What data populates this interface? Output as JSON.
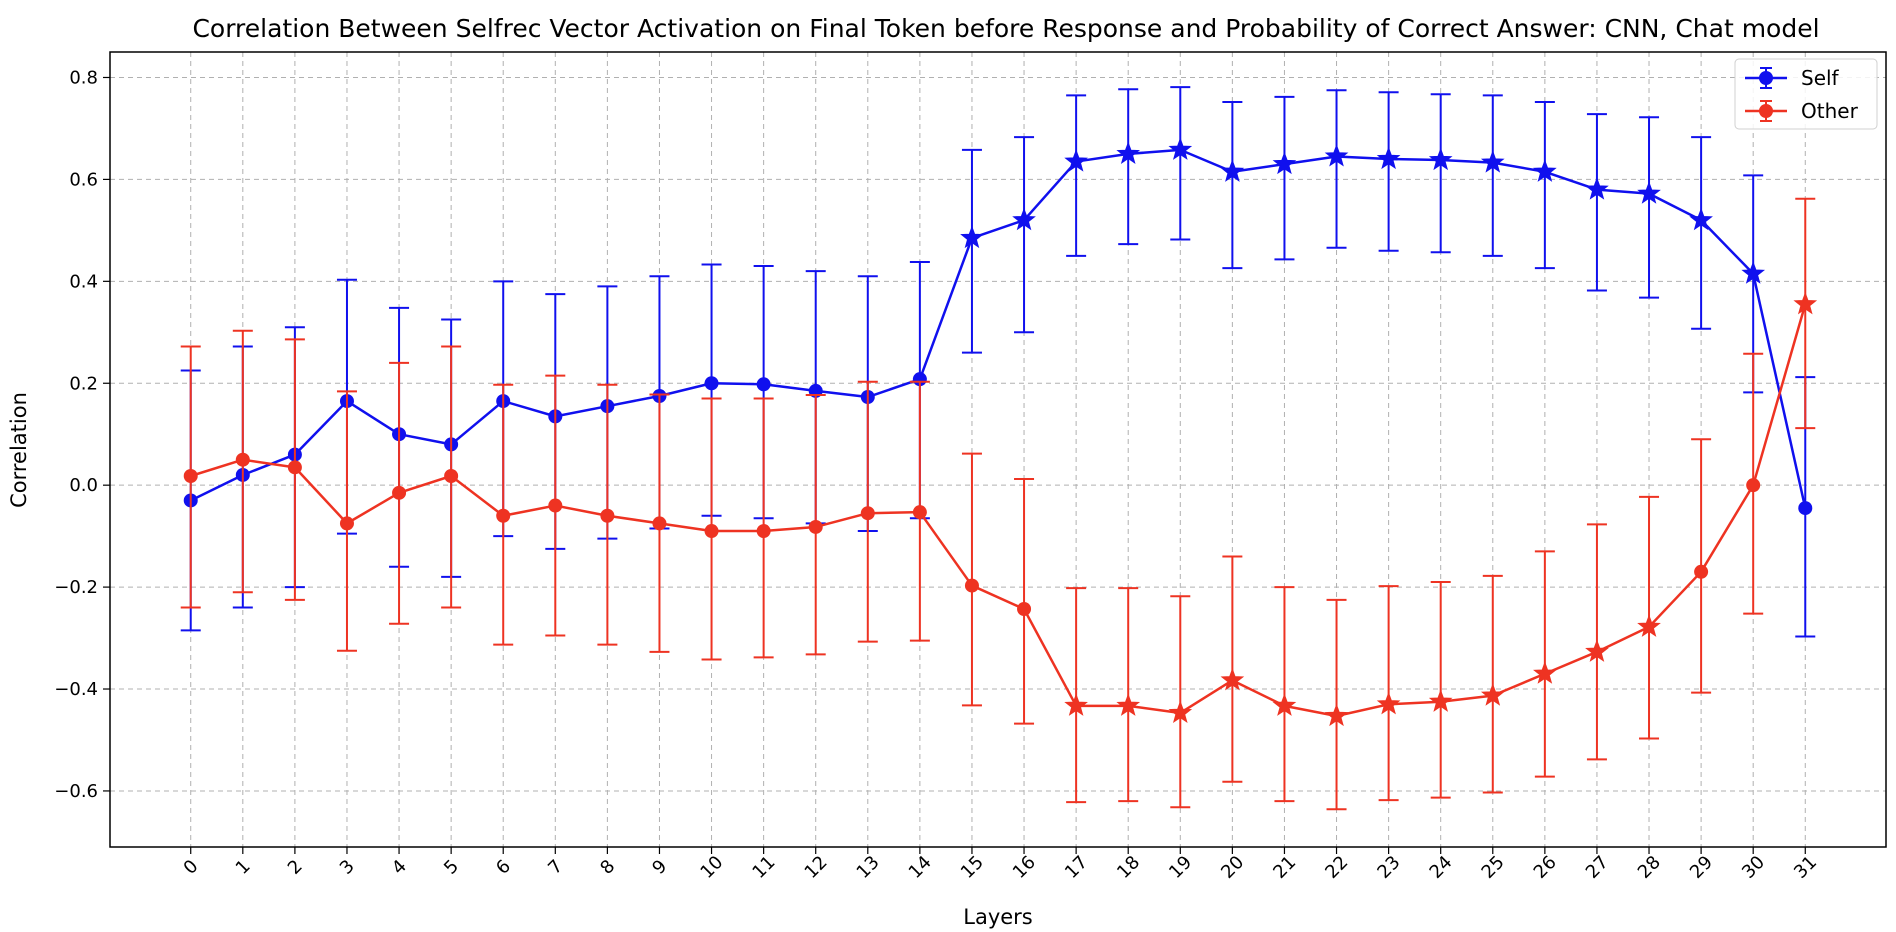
{
  "chart_data": {
    "type": "line",
    "title": "Correlation Between Selfrec Vector Activation on Final Token before Response and Probability of Correct Answer: CNN, Chat model",
    "xlabel": "Layers",
    "ylabel": "Correlation",
    "x": [
      0,
      1,
      2,
      3,
      4,
      5,
      6,
      7,
      8,
      9,
      10,
      11,
      12,
      13,
      14,
      15,
      16,
      17,
      18,
      19,
      20,
      21,
      22,
      23,
      24,
      25,
      26,
      27,
      28,
      29,
      30,
      31
    ],
    "xlim": [
      -1.55,
      32.55
    ],
    "ylim": [
      -0.71,
      0.85
    ],
    "yticks": [
      -0.6,
      -0.4,
      -0.2,
      0.0,
      0.2,
      0.4,
      0.6,
      0.8
    ],
    "ytick_labels": [
      "−0.6",
      "−0.4",
      "−0.2",
      "0.0",
      "0.2",
      "0.4",
      "0.6",
      "0.8"
    ],
    "grid": true,
    "legend_position": "top-right",
    "star_threshold_note": "",
    "series": [
      {
        "name": "Self",
        "color": "#1010ee",
        "values": [
          -0.03,
          0.02,
          0.06,
          0.165,
          0.1,
          0.08,
          0.165,
          0.135,
          0.155,
          0.175,
          0.2,
          0.198,
          0.185,
          0.173,
          0.208,
          0.485,
          0.52,
          0.635,
          0.65,
          0.658,
          0.615,
          0.63,
          0.645,
          0.64,
          0.638,
          0.633,
          0.615,
          0.58,
          0.572,
          0.52,
          0.415,
          -0.045
        ],
        "err_low": [
          -0.285,
          -0.24,
          -0.2,
          -0.095,
          -0.16,
          -0.18,
          -0.1,
          -0.125,
          -0.105,
          -0.085,
          -0.06,
          -0.065,
          -0.075,
          -0.09,
          -0.065,
          0.26,
          0.3,
          0.45,
          0.473,
          0.482,
          0.426,
          0.443,
          0.466,
          0.46,
          0.457,
          0.45,
          0.426,
          0.382,
          0.368,
          0.307,
          0.182,
          -0.297
        ],
        "err_high": [
          0.225,
          0.272,
          0.31,
          0.403,
          0.348,
          0.325,
          0.4,
          0.375,
          0.39,
          0.41,
          0.433,
          0.43,
          0.42,
          0.41,
          0.438,
          0.658,
          0.683,
          0.765,
          0.777,
          0.781,
          0.752,
          0.762,
          0.775,
          0.771,
          0.767,
          0.765,
          0.752,
          0.728,
          0.722,
          0.683,
          0.608,
          0.212
        ],
        "marker": [
          "circle",
          "circle",
          "circle",
          "circle",
          "circle",
          "circle",
          "circle",
          "circle",
          "circle",
          "circle",
          "circle",
          "circle",
          "circle",
          "circle",
          "circle",
          "star",
          "star",
          "star",
          "star",
          "star",
          "star",
          "star",
          "star",
          "star",
          "star",
          "star",
          "star",
          "star",
          "star",
          "star",
          "star",
          "circle"
        ]
      },
      {
        "name": "Other",
        "color": "#ee3322",
        "values": [
          0.018,
          0.05,
          0.035,
          -0.075,
          -0.015,
          0.018,
          -0.06,
          -0.04,
          -0.06,
          -0.075,
          -0.09,
          -0.09,
          -0.082,
          -0.055,
          -0.053,
          -0.197,
          -0.243,
          -0.433,
          -0.433,
          -0.447,
          -0.383,
          -0.433,
          -0.453,
          -0.43,
          -0.425,
          -0.413,
          -0.37,
          -0.327,
          -0.278,
          -0.17,
          0.0,
          0.355
        ],
        "err_low": [
          -0.24,
          -0.21,
          -0.225,
          -0.325,
          -0.272,
          -0.24,
          -0.313,
          -0.295,
          -0.313,
          -0.327,
          -0.342,
          -0.338,
          -0.332,
          -0.307,
          -0.305,
          -0.432,
          -0.468,
          -0.622,
          -0.62,
          -0.632,
          -0.582,
          -0.62,
          -0.636,
          -0.618,
          -0.613,
          -0.603,
          -0.572,
          -0.538,
          -0.497,
          -0.407,
          -0.252,
          0.112
        ],
        "err_high": [
          0.272,
          0.303,
          0.286,
          0.184,
          0.24,
          0.272,
          0.197,
          0.215,
          0.197,
          0.178,
          0.17,
          0.17,
          0.177,
          0.203,
          0.203,
          0.062,
          0.012,
          -0.202,
          -0.202,
          -0.218,
          -0.14,
          -0.2,
          -0.225,
          -0.198,
          -0.19,
          -0.178,
          -0.13,
          -0.077,
          -0.023,
          0.09,
          0.258,
          0.562
        ],
        "marker": [
          "circle",
          "circle",
          "circle",
          "circle",
          "circle",
          "circle",
          "circle",
          "circle",
          "circle",
          "circle",
          "circle",
          "circle",
          "circle",
          "circle",
          "circle",
          "circle",
          "circle",
          "star",
          "star",
          "star",
          "star",
          "star",
          "star",
          "star",
          "star",
          "star",
          "star",
          "star",
          "star",
          "circle",
          "circle",
          "star"
        ]
      }
    ]
  }
}
